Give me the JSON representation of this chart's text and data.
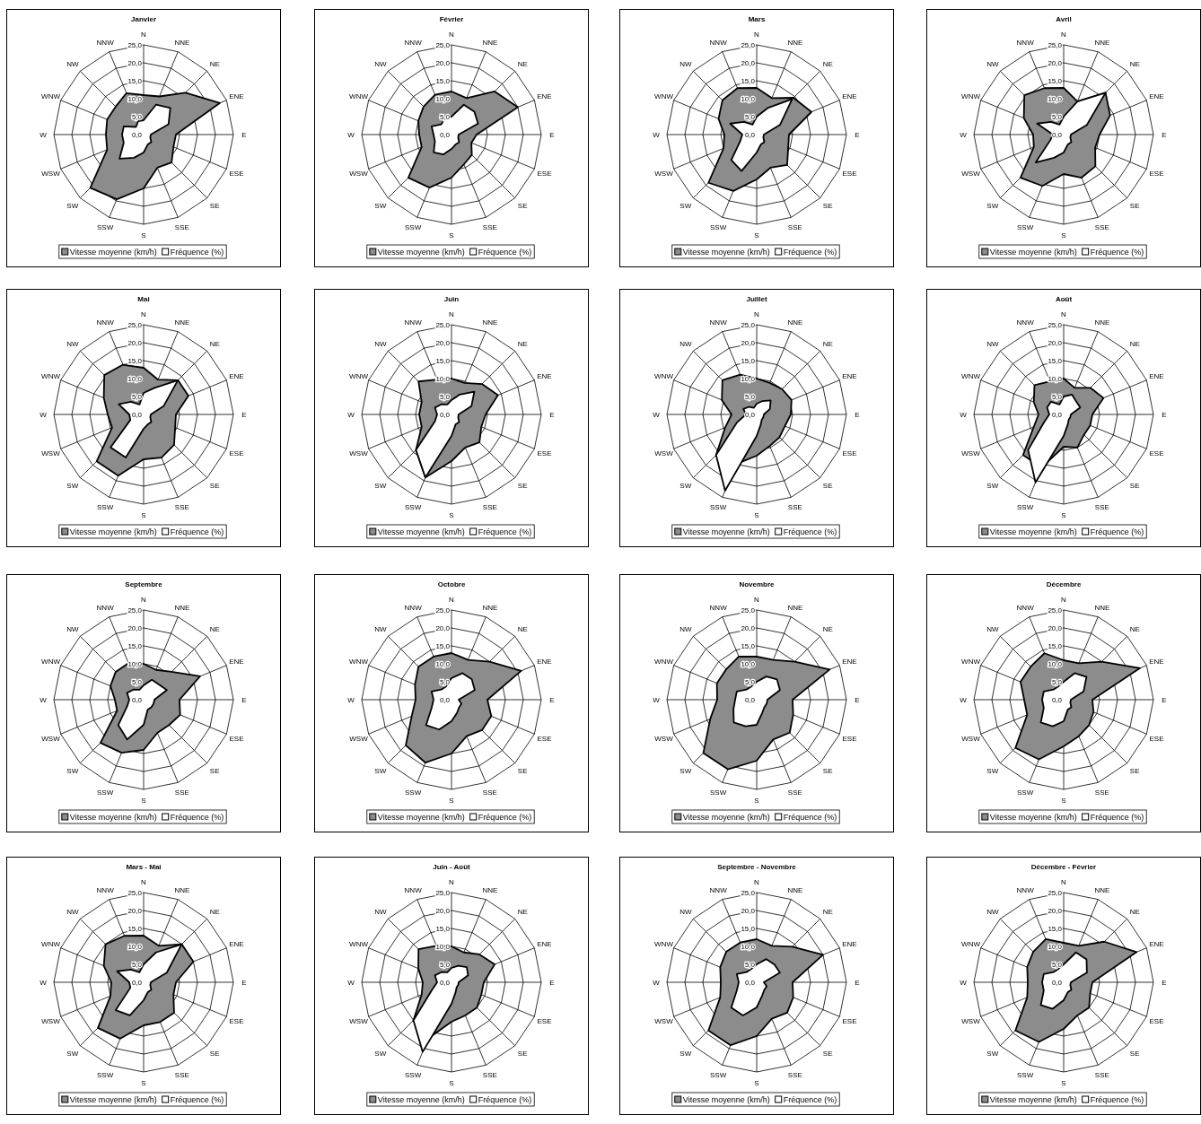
{
  "chart_data": [
    {
      "type": "radar",
      "title": "Janvier",
      "categories": [
        "N",
        "NNE",
        "NE",
        "ENE",
        "E",
        "ESE",
        "SE",
        "SSE",
        "S",
        "SSW",
        "SW",
        "WSW",
        "W",
        "WNW",
        "NW",
        "NNW"
      ],
      "ylim": [
        0,
        25
      ],
      "yticks": [
        {
          "value": 0,
          "label": "0,0"
        },
        {
          "value": 5,
          "label": "5,0"
        },
        {
          "value": 10,
          "label": "10,0"
        },
        {
          "value": 15,
          "label": "15,0"
        },
        {
          "value": 20,
          "label": "20,0"
        },
        {
          "value": 25,
          "label": "25,0"
        }
      ],
      "grid": true,
      "legend": "bottom",
      "series": [
        {
          "name": "Vitesse moyenne (km/h)",
          "color": "#8c8c8c",
          "values": [
            11,
            11.5,
            16.5,
            23,
            9,
            9,
            11,
            10,
            15,
            19.5,
            21,
            11,
            10.5,
            11,
            11,
            12.5
          ]
        },
        {
          "name": "Fréquence (%)",
          "color": "#ffffff",
          "values": [
            4,
            9,
            10.5,
            7.5,
            2,
            2,
            3,
            3,
            5,
            7,
            9.5,
            6,
            6,
            6,
            3,
            4
          ]
        }
      ]
    },
    {
      "type": "radar",
      "title": "Février",
      "categories": [
        "N",
        "NNE",
        "NE",
        "ENE",
        "E",
        "ESE",
        "SE",
        "SSE",
        "S",
        "SSW",
        "SW",
        "WSW",
        "W",
        "WNW",
        "NW",
        "NNW"
      ],
      "ylim": [
        0,
        25
      ],
      "yticks": [
        {
          "value": 0,
          "label": "0,0"
        },
        {
          "value": 5,
          "label": "5,0"
        },
        {
          "value": 10,
          "label": "10,0"
        },
        {
          "value": 15,
          "label": "15,0"
        },
        {
          "value": 20,
          "label": "20,0"
        },
        {
          "value": 25,
          "label": "25,0"
        }
      ],
      "grid": true,
      "legend": "bottom",
      "series": [
        {
          "name": "Vitesse moyenne (km/h)",
          "color": "#8c8c8c",
          "values": [
            12,
            11,
            17,
            20,
            7,
            6,
            8,
            9,
            12,
            16,
            17,
            9,
            9,
            10,
            11,
            12
          ]
        },
        {
          "name": "Fréquence (%)",
          "color": "#ffffff",
          "values": [
            5,
            9,
            9,
            8,
            2,
            2,
            3,
            3,
            4,
            6,
            7,
            5,
            5,
            6,
            4,
            5
          ]
        }
      ]
    },
    {
      "type": "radar",
      "title": "Mars",
      "categories": [
        "N",
        "NNE",
        "NE",
        "ENE",
        "E",
        "ESE",
        "SE",
        "SSE",
        "S",
        "SSW",
        "SW",
        "WSW",
        "W",
        "WNW",
        "NW",
        "NNW"
      ],
      "ylim": [
        0,
        25
      ],
      "yticks": [
        {
          "value": 0,
          "label": "0,0"
        },
        {
          "value": 5,
          "label": "5,0"
        },
        {
          "value": 10,
          "label": "10,0"
        },
        {
          "value": 15,
          "label": "15,0"
        },
        {
          "value": 20,
          "label": "20,0"
        },
        {
          "value": 25,
          "label": "25,0"
        }
      ],
      "grid": true,
      "legend": "bottom",
      "series": [
        {
          "name": "Vitesse moyenne (km/h)",
          "color": "#8c8c8c",
          "values": [
            13,
            11,
            14.5,
            16.5,
            9,
            9.5,
            12,
            10,
            12.5,
            17,
            19,
            10,
            9,
            11.5,
            13.5,
            14
          ]
        },
        {
          "name": "Fréquence (%)",
          "color": "#ffffff",
          "values": [
            5,
            8,
            14,
            7,
            2,
            2,
            3,
            3,
            5,
            11,
            10,
            5,
            4,
            8,
            5,
            3
          ]
        }
      ]
    },
    {
      "type": "radar",
      "title": "Avril",
      "categories": [
        "N",
        "NNE",
        "NE",
        "ENE",
        "E",
        "ESE",
        "SE",
        "SSE",
        "S",
        "SSW",
        "SW",
        "WSW",
        "W",
        "WNW",
        "NW",
        "NNW"
      ],
      "ylim": [
        0,
        25
      ],
      "yticks": [
        {
          "value": 0,
          "label": "0,0"
        },
        {
          "value": 5,
          "label": "5,0"
        },
        {
          "value": 10,
          "label": "10,0"
        },
        {
          "value": 15,
          "label": "15,0"
        },
        {
          "value": 20,
          "label": "20,0"
        },
        {
          "value": 25,
          "label": "25,0"
        }
      ],
      "grid": true,
      "legend": "bottom",
      "series": [
        {
          "name": "Vitesse moyenne (km/h)",
          "color": "#8c8c8c",
          "values": [
            13,
            10,
            16.5,
            14,
            10,
            9.5,
            12.5,
            13,
            11,
            15.5,
            17,
            9,
            8.5,
            12,
            15.5,
            14
          ]
        },
        {
          "name": "Fréquence (%)",
          "color": "#ffffff",
          "values": [
            5,
            10,
            16.5,
            7,
            2,
            2,
            3,
            3,
            5,
            7,
            11,
            4,
            3,
            8,
            5,
            3
          ]
        }
      ]
    },
    {
      "type": "radar",
      "title": "Mai",
      "categories": [
        "N",
        "NNE",
        "NE",
        "ENE",
        "E",
        "ESE",
        "SE",
        "SSE",
        "S",
        "SSW",
        "SW",
        "WSW",
        "W",
        "WNW",
        "NW",
        "NNW"
      ],
      "ylim": [
        0,
        25
      ],
      "yticks": [
        {
          "value": 0,
          "label": "0,0"
        },
        {
          "value": 5,
          "label": "5,0"
        },
        {
          "value": 10,
          "label": "10,0"
        },
        {
          "value": 15,
          "label": "15,0"
        },
        {
          "value": 20,
          "label": "20,0"
        },
        {
          "value": 25,
          "label": "25,0"
        }
      ],
      "grid": true,
      "legend": "bottom",
      "series": [
        {
          "name": "Vitesse moyenne (km/h)",
          "color": "#8c8c8c",
          "values": [
            13,
            10.5,
            13.5,
            13.5,
            9,
            9.5,
            12,
            13,
            12.5,
            18.5,
            18.5,
            9.5,
            10,
            12,
            15.5,
            15
          ]
        },
        {
          "name": "Fréquence (%)",
          "color": "#ffffff",
          "values": [
            6,
            8,
            13.5,
            6,
            2,
            2,
            3,
            3,
            4,
            13,
            13,
            4,
            4,
            7.5,
            5,
            3
          ]
        }
      ]
    },
    {
      "type": "radar",
      "title": "Juin",
      "categories": [
        "N",
        "NNE",
        "NE",
        "ENE",
        "E",
        "ESE",
        "SE",
        "SSE",
        "S",
        "SSW",
        "SW",
        "WSW",
        "W",
        "WNW",
        "NW",
        "NNW"
      ],
      "ylim": [
        0,
        25
      ],
      "yticks": [
        {
          "value": 0,
          "label": "0,0"
        },
        {
          "value": 5,
          "label": "5,0"
        },
        {
          "value": 10,
          "label": "10,0"
        },
        {
          "value": 15,
          "label": "15,0"
        },
        {
          "value": 20,
          "label": "20,0"
        },
        {
          "value": 25,
          "label": "25,0"
        }
      ],
      "grid": true,
      "legend": "bottom",
      "series": [
        {
          "name": "Vitesse moyenne (km/h)",
          "color": "#8c8c8c",
          "values": [
            10,
            9.5,
            12,
            14,
            9.5,
            9,
            11,
            10,
            13,
            19,
            14,
            9,
            9,
            9,
            13,
            10.5
          ]
        },
        {
          "name": "Fréquence (%)",
          "color": "#ffffff",
          "values": [
            4,
            6,
            9,
            6,
            2,
            2,
            3,
            3,
            6,
            19,
            14,
            5,
            4,
            5,
            4,
            3
          ]
        }
      ]
    },
    {
      "type": "radar",
      "title": "Juillet",
      "categories": [
        "N",
        "NNE",
        "NE",
        "ENE",
        "E",
        "ESE",
        "SE",
        "SSE",
        "S",
        "SSW",
        "SW",
        "WSW",
        "W",
        "WNW",
        "NW",
        "NNW"
      ],
      "ylim": [
        0,
        25
      ],
      "yticks": [
        {
          "value": 0,
          "label": "0,0"
        },
        {
          "value": 5,
          "label": "5,0"
        },
        {
          "value": 10,
          "label": "10,0"
        },
        {
          "value": 15,
          "label": "15,0"
        },
        {
          "value": 20,
          "label": "20,0"
        },
        {
          "value": 25,
          "label": "25,0"
        }
      ],
      "grid": true,
      "legend": "bottom",
      "series": [
        {
          "name": "Vitesse moyenne (km/h)",
          "color": "#8c8c8c",
          "values": [
            10,
            9.5,
            10,
            10.5,
            9.5,
            8.5,
            9,
            9.5,
            11.5,
            15,
            16,
            9.5,
            7,
            10.5,
            13.5,
            12
          ]
        },
        {
          "name": "Fréquence (%)",
          "color": "#ffffff",
          "values": [
            3,
            4,
            5.5,
            4,
            2,
            2,
            2,
            3,
            6,
            23,
            16,
            6,
            3,
            4,
            3,
            2
          ]
        }
      ]
    },
    {
      "type": "radar",
      "title": "Août",
      "categories": [
        "N",
        "NNE",
        "NE",
        "ENE",
        "E",
        "ESE",
        "SE",
        "SSE",
        "S",
        "SSW",
        "SW",
        "WSW",
        "W",
        "WNW",
        "NW",
        "NNW"
      ],
      "ylim": [
        0,
        25
      ],
      "yticks": [
        {
          "value": 0,
          "label": "0,0"
        },
        {
          "value": 5,
          "label": "5,0"
        },
        {
          "value": 10,
          "label": "10,0"
        },
        {
          "value": 15,
          "label": "15,0"
        },
        {
          "value": 20,
          "label": "20,0"
        },
        {
          "value": 25,
          "label": "25,0"
        }
      ],
      "grid": true,
      "legend": "bottom",
      "series": [
        {
          "name": "Vitesse moyenne (km/h)",
          "color": "#8c8c8c",
          "values": [
            10,
            8,
            10.5,
            12,
            8,
            8,
            8,
            10,
            9,
            16,
            16,
            9,
            7,
            9,
            11.5,
            10
          ]
        },
        {
          "name": "Fréquence (%)",
          "color": "#ffffff",
          "values": [
            5,
            6,
            5,
            5,
            2,
            2,
            2,
            3,
            6,
            20.5,
            14,
            6,
            4,
            5,
            5,
            3
          ]
        }
      ]
    },
    {
      "type": "radar",
      "title": "Septembre",
      "categories": [
        "N",
        "NNE",
        "NE",
        "ENE",
        "E",
        "ESE",
        "SE",
        "SSE",
        "S",
        "SSW",
        "SW",
        "WSW",
        "W",
        "WNW",
        "NW",
        "NNW"
      ],
      "ylim": [
        0,
        25
      ],
      "yticks": [
        {
          "value": 0,
          "label": "0,0"
        },
        {
          "value": 5,
          "label": "5,0"
        },
        {
          "value": 10,
          "label": "10,0"
        },
        {
          "value": 15,
          "label": "15,0"
        },
        {
          "value": 20,
          "label": "20,0"
        },
        {
          "value": 25,
          "label": "25,0"
        }
      ],
      "grid": true,
      "legend": "bottom",
      "series": [
        {
          "name": "Vitesse moyenne (km/h)",
          "color": "#8c8c8c",
          "values": [
            10,
            9,
            11,
            17,
            10,
            11,
            10,
            10,
            14,
            16,
            17,
            8,
            8,
            10,
            11,
            11
          ]
        },
        {
          "name": "Fréquence (%)",
          "color": "#ffffff",
          "values": [
            4,
            6,
            6,
            7,
            3,
            3,
            3,
            3,
            7,
            12,
            10,
            5,
            4,
            5,
            4,
            3
          ]
        }
      ]
    },
    {
      "type": "radar",
      "title": "Octobre",
      "categories": [
        "N",
        "NNE",
        "NE",
        "ENE",
        "E",
        "ESE",
        "SE",
        "SSE",
        "S",
        "SSW",
        "SW",
        "WSW",
        "W",
        "WNW",
        "NW",
        "NNW"
      ],
      "ylim": [
        0,
        25
      ],
      "yticks": [
        {
          "value": 0,
          "label": "0,0"
        },
        {
          "value": 5,
          "label": "5,0"
        },
        {
          "value": 10,
          "label": "10,0"
        },
        {
          "value": 15,
          "label": "15,0"
        },
        {
          "value": 20,
          "label": "20,0"
        },
        {
          "value": 25,
          "label": "25,0"
        }
      ],
      "grid": true,
      "legend": "bottom",
      "series": [
        {
          "name": "Vitesse moyenne (km/h)",
          "color": "#8c8c8c",
          "values": [
            13,
            12,
            15,
            21,
            10,
            12,
            12,
            11,
            15,
            19,
            18,
            12,
            10,
            11,
            13,
            13
          ]
        },
        {
          "name": "Fréquence (%)",
          "color": "#ffffff",
          "values": [
            6,
            8,
            8,
            7,
            2,
            3,
            3,
            4,
            6,
            9,
            10,
            6,
            5,
            6,
            4,
            4
          ]
        }
      ]
    },
    {
      "type": "radar",
      "title": "Novembre",
      "categories": [
        "N",
        "NNE",
        "NE",
        "ENE",
        "E",
        "ESE",
        "SE",
        "SSE",
        "S",
        "SSW",
        "SW",
        "WSW",
        "W",
        "WNW",
        "NW",
        "NNW"
      ],
      "ylim": [
        0,
        25
      ],
      "yticks": [
        {
          "value": 0,
          "label": "0,0"
        },
        {
          "value": 5,
          "label": "5,0"
        },
        {
          "value": 10,
          "label": "10,0"
        },
        {
          "value": 15,
          "label": "15,0"
        },
        {
          "value": 20,
          "label": "20,0"
        },
        {
          "value": 25,
          "label": "25,0"
        }
      ],
      "grid": true,
      "legend": "bottom",
      "series": [
        {
          "name": "Vitesse moyenne (km/h)",
          "color": "#8c8c8c",
          "values": [
            12,
            12,
            15,
            22,
            10,
            11,
            13,
            12,
            17,
            21,
            21,
            14,
            11,
            12,
            12,
            13
          ]
        },
        {
          "name": "Fréquence (%)",
          "color": "#ffffff",
          "values": [
            5,
            7,
            8,
            7,
            3,
            3,
            3,
            4,
            7,
            8,
            9,
            7,
            6,
            6,
            4,
            4
          ]
        }
      ]
    },
    {
      "type": "radar",
      "title": "Décembre",
      "categories": [
        "N",
        "NNE",
        "NE",
        "ENE",
        "E",
        "ESE",
        "SE",
        "SSE",
        "S",
        "SSW",
        "SW",
        "WSW",
        "W",
        "WNW",
        "NW",
        "NNW"
      ],
      "ylim": [
        0,
        25
      ],
      "yticks": [
        {
          "value": 0,
          "label": "0,0"
        },
        {
          "value": 5,
          "label": "5,0"
        },
        {
          "value": 10,
          "label": "10,0"
        },
        {
          "value": 15,
          "label": "15,0"
        },
        {
          "value": 20,
          "label": "20,0"
        },
        {
          "value": 25,
          "label": "25,0"
        }
      ],
      "grid": true,
      "legend": "bottom",
      "series": [
        {
          "name": "Vitesse moyenne (km/h)",
          "color": "#8c8c8c",
          "values": [
            11,
            11,
            15,
            23,
            8,
            9,
            10,
            11,
            13,
            18,
            19,
            11,
            11,
            13,
            13,
            14
          ]
        },
        {
          "name": "Fréquence (%)",
          "color": "#ffffff",
          "values": [
            5,
            8,
            9,
            6,
            2,
            2,
            3,
            3,
            6,
            8,
            9,
            6,
            6,
            6,
            4,
            4
          ]
        }
      ]
    },
    {
      "type": "radar",
      "title": "Mars - Mai",
      "categories": [
        "N",
        "NNE",
        "NE",
        "ENE",
        "E",
        "ESE",
        "SE",
        "SSE",
        "S",
        "SSW",
        "SW",
        "WSW",
        "W",
        "WNW",
        "NW",
        "NNW"
      ],
      "ylim": [
        0,
        25
      ],
      "yticks": [
        {
          "value": 0,
          "label": "0,0"
        },
        {
          "value": 5,
          "label": "5,0"
        },
        {
          "value": 10,
          "label": "10,0"
        },
        {
          "value": 15,
          "label": "15,0"
        },
        {
          "value": 20,
          "label": "20,0"
        },
        {
          "value": 25,
          "label": "25,0"
        }
      ],
      "grid": true,
      "legend": "bottom",
      "series": [
        {
          "name": "Vitesse moyenne (km/h)",
          "color": "#8c8c8c",
          "values": [
            13,
            11,
            15,
            15,
            9,
            9,
            12,
            12,
            12,
            17,
            18,
            10,
            9,
            12,
            15,
            14
          ]
        },
        {
          "name": "Fréquence (%)",
          "color": "#ffffff",
          "values": [
            5,
            9,
            15,
            7,
            2,
            2,
            3,
            3,
            5,
            10,
            11,
            4,
            4,
            8,
            5,
            3
          ]
        }
      ]
    },
    {
      "type": "radar",
      "title": "Juin - Août",
      "categories": [
        "N",
        "NNE",
        "NE",
        "ENE",
        "E",
        "ESE",
        "SE",
        "SSE",
        "S",
        "SSW",
        "SW",
        "WSW",
        "W",
        "WNW",
        "NW",
        "NNW"
      ],
      "ylim": [
        0,
        25
      ],
      "yticks": [
        {
          "value": 0,
          "label": "0,0"
        },
        {
          "value": 5,
          "label": "5,0"
        },
        {
          "value": 10,
          "label": "10,0"
        },
        {
          "value": 15,
          "label": "15,0"
        },
        {
          "value": 20,
          "label": "20,0"
        },
        {
          "value": 25,
          "label": "25,0"
        }
      ],
      "grid": true,
      "legend": "bottom",
      "series": [
        {
          "name": "Vitesse moyenne (km/h)",
          "color": "#8c8c8c",
          "values": [
            10,
            9,
            11,
            13,
            9,
            9,
            10,
            10,
            11,
            17,
            15,
            9,
            8,
            10,
            13,
            11
          ]
        },
        {
          "name": "Fréquence (%)",
          "color": "#ffffff",
          "values": [
            4,
            5,
            6,
            5,
            2,
            2,
            2,
            3,
            6,
            21,
            15,
            6,
            4,
            5,
            4,
            3
          ]
        }
      ]
    },
    {
      "type": "radar",
      "title": "Septembre - Novembre",
      "categories": [
        "N",
        "NNE",
        "NE",
        "ENE",
        "E",
        "ESE",
        "SE",
        "SSE",
        "S",
        "SSW",
        "SW",
        "WSW",
        "W",
        "WNW",
        "NW",
        "NNW"
      ],
      "ylim": [
        0,
        25
      ],
      "yticks": [
        {
          "value": 0,
          "label": "0,0"
        },
        {
          "value": 5,
          "label": "5,0"
        },
        {
          "value": 10,
          "label": "10,0"
        },
        {
          "value": 15,
          "label": "15,0"
        },
        {
          "value": 20,
          "label": "20,0"
        },
        {
          "value": 25,
          "label": "25,0"
        }
      ],
      "grid": true,
      "legend": "bottom",
      "series": [
        {
          "name": "Vitesse moyenne (km/h)",
          "color": "#8c8c8c",
          "values": [
            12,
            11,
            14,
            20,
            10,
            11,
            12,
            11,
            15,
            19,
            19,
            11,
            10,
            11,
            12,
            12
          ]
        },
        {
          "name": "Fréquence (%)",
          "color": "#ffffff",
          "values": [
            5,
            7,
            7,
            7,
            2,
            3,
            3,
            4,
            7,
            10,
            10,
            6,
            5,
            6,
            4,
            4
          ]
        }
      ]
    },
    {
      "type": "radar",
      "title": "Décembre - Février",
      "categories": [
        "N",
        "NNE",
        "NE",
        "ENE",
        "E",
        "ESE",
        "SE",
        "SSE",
        "S",
        "SSW",
        "SW",
        "WSW",
        "W",
        "WNW",
        "NW",
        "NNW"
      ],
      "ylim": [
        0,
        25
      ],
      "yticks": [
        {
          "value": 0,
          "label": "0,0"
        },
        {
          "value": 5,
          "label": "5,0"
        },
        {
          "value": 10,
          "label": "10,0"
        },
        {
          "value": 15,
          "label": "15,0"
        },
        {
          "value": 20,
          "label": "20,0"
        },
        {
          "value": 25,
          "label": "25,0"
        }
      ],
      "grid": true,
      "legend": "bottom",
      "series": [
        {
          "name": "Vitesse moyenne (km/h)",
          "color": "#8c8c8c",
          "values": [
            11,
            11,
            16,
            22,
            8,
            8,
            10,
            10,
            13,
            18,
            19,
            11,
            10,
            11,
            12,
            13
          ]
        },
        {
          "name": "Fréquence (%)",
          "color": "#ffffff",
          "values": [
            5,
            9,
            9,
            7,
            2,
            2,
            3,
            3,
            5,
            8,
            9,
            6,
            6,
            6,
            4,
            4
          ]
        }
      ]
    }
  ]
}
